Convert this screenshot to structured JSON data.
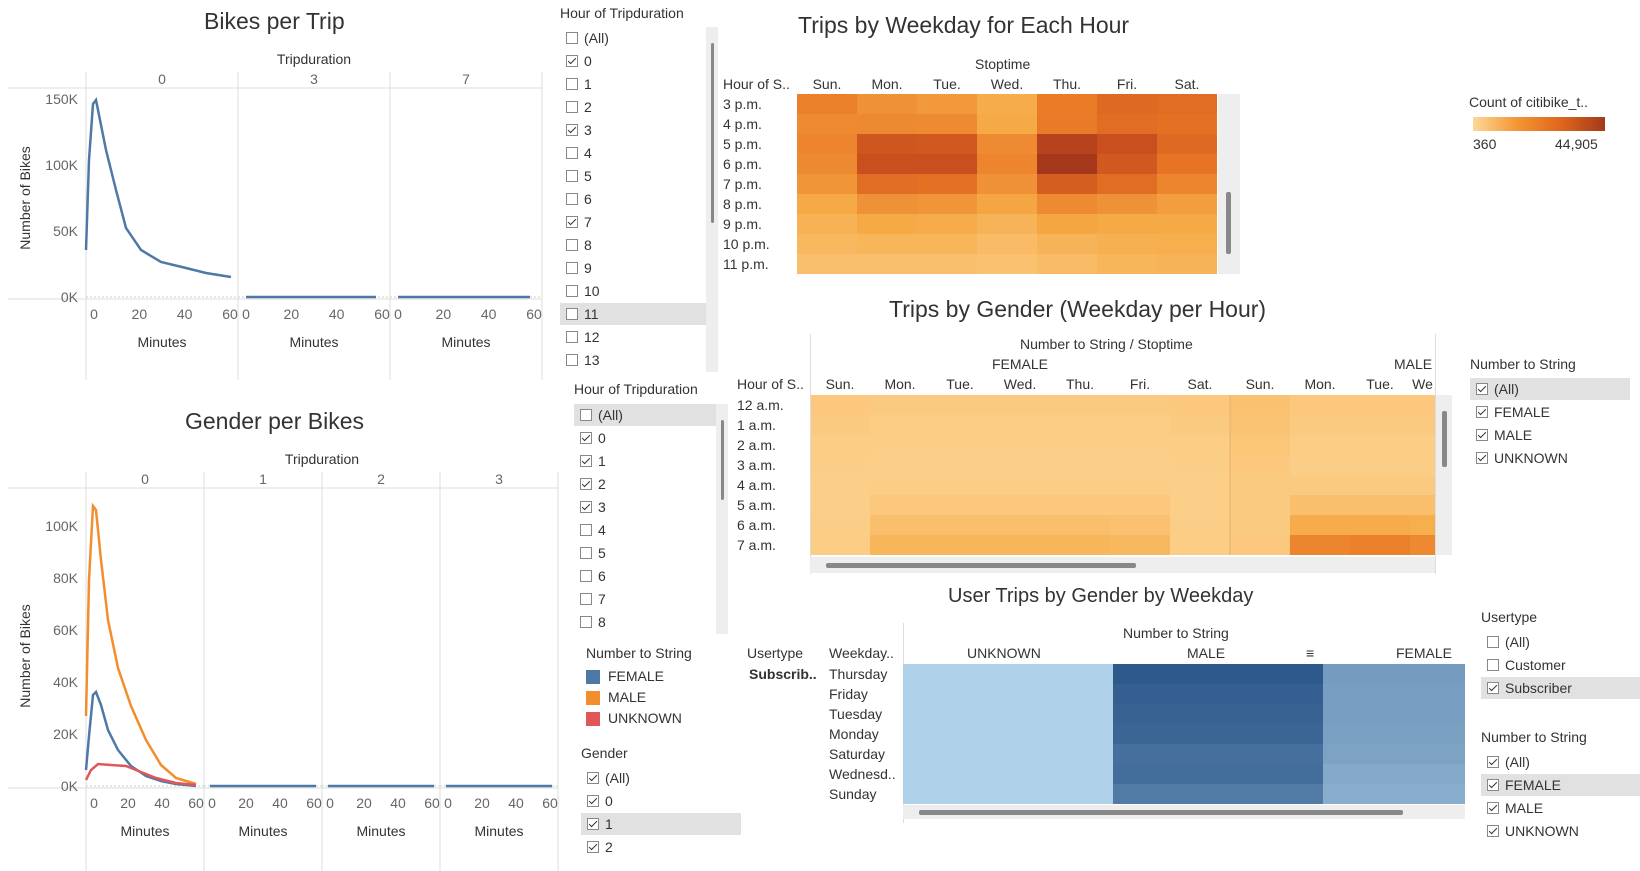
{
  "bikes_per_trip": {
    "title": "Bikes per Trip",
    "facet_header": "Tripduration",
    "facets": [
      "0",
      "3",
      "7"
    ],
    "y_label": "Number of Bikes",
    "y_ticks": [
      "150K",
      "100K",
      "50K",
      "0K"
    ],
    "x_ticks": [
      "0",
      "20",
      "40",
      "60"
    ],
    "x_label": "Minutes"
  },
  "gender_per_bikes": {
    "title": "Gender per Bikes",
    "facet_header": "Tripduration",
    "facets": [
      "0",
      "1",
      "2",
      "3"
    ],
    "y_label": "Number of Bikes",
    "y_ticks": [
      "100K",
      "80K",
      "60K",
      "40K",
      "20K",
      "0K"
    ],
    "x_ticks": [
      "0",
      "20",
      "40",
      "60"
    ],
    "x_label": "Minutes"
  },
  "filter_hour_1": {
    "title": "Hour of Tripduration",
    "items": [
      {
        "label": "(All)",
        "checked": false
      },
      {
        "label": "0",
        "checked": true
      },
      {
        "label": "1",
        "checked": false
      },
      {
        "label": "2",
        "checked": false
      },
      {
        "label": "3",
        "checked": true
      },
      {
        "label": "4",
        "checked": false
      },
      {
        "label": "5",
        "checked": false
      },
      {
        "label": "6",
        "checked": false
      },
      {
        "label": "7",
        "checked": true
      },
      {
        "label": "8",
        "checked": false
      },
      {
        "label": "9",
        "checked": false
      },
      {
        "label": "10",
        "checked": false
      },
      {
        "label": "11",
        "checked": false,
        "highlight": true
      },
      {
        "label": "12",
        "checked": false
      },
      {
        "label": "13",
        "checked": false
      }
    ]
  },
  "filter_hour_2": {
    "title": "Hour of Tripduration",
    "items": [
      {
        "label": "(All)",
        "checked": false,
        "highlight": true
      },
      {
        "label": "0",
        "checked": true
      },
      {
        "label": "1",
        "checked": true
      },
      {
        "label": "2",
        "checked": true
      },
      {
        "label": "3",
        "checked": true
      },
      {
        "label": "4",
        "checked": false
      },
      {
        "label": "5",
        "checked": false
      },
      {
        "label": "6",
        "checked": false
      },
      {
        "label": "7",
        "checked": false
      },
      {
        "label": "8",
        "checked": false
      }
    ]
  },
  "legend_number_to_string": {
    "title": "Number to String",
    "items": [
      {
        "label": "FEMALE",
        "color": "#4e79a7"
      },
      {
        "label": "MALE",
        "color": "#f28e2b"
      },
      {
        "label": "UNKNOWN",
        "color": "#e15759"
      }
    ]
  },
  "filter_gender": {
    "title": "Gender",
    "items": [
      {
        "label": "(All)",
        "checked": true
      },
      {
        "label": "0",
        "checked": true
      },
      {
        "label": "1",
        "checked": true,
        "highlight": true
      },
      {
        "label": "2",
        "checked": true
      }
    ]
  },
  "trips_weekday_hour": {
    "title": "Trips by Weekday for Each Hour",
    "column_header": "Stoptime",
    "row_header": "Hour of S..",
    "days": [
      "Sun.",
      "Mon.",
      "Tue.",
      "Wed.",
      "Thu.",
      "Fri.",
      "Sat."
    ],
    "hours": [
      "3 p.m.",
      "4 p.m.",
      "5 p.m.",
      "6 p.m.",
      "7 p.m.",
      "8 p.m.",
      "9 p.m.",
      "10 p.m.",
      "11 p.m."
    ],
    "values": [
      [
        0.6,
        0.52,
        0.48,
        0.38,
        0.62,
        0.72,
        0.7
      ],
      [
        0.55,
        0.56,
        0.55,
        0.4,
        0.63,
        0.7,
        0.68
      ],
      [
        0.58,
        0.82,
        0.8,
        0.55,
        0.92,
        0.85,
        0.72
      ],
      [
        0.56,
        0.85,
        0.85,
        0.58,
        0.98,
        0.8,
        0.66
      ],
      [
        0.5,
        0.7,
        0.68,
        0.52,
        0.78,
        0.7,
        0.58
      ],
      [
        0.4,
        0.52,
        0.5,
        0.42,
        0.55,
        0.52,
        0.46
      ],
      [
        0.33,
        0.4,
        0.38,
        0.32,
        0.42,
        0.4,
        0.4
      ],
      [
        0.28,
        0.3,
        0.3,
        0.25,
        0.32,
        0.35,
        0.36
      ],
      [
        0.22,
        0.22,
        0.22,
        0.2,
        0.25,
        0.3,
        0.32
      ]
    ]
  },
  "color_legend": {
    "title": "Count of citibike_t..",
    "min": "360",
    "max": "44,905"
  },
  "trips_by_gender": {
    "title": "Trips by Gender (Weekday per Hour)",
    "column_header": "Number to String / Stoptime",
    "row_header": "Hour of S..",
    "groups": [
      "FEMALE",
      "MALE"
    ],
    "days_female": [
      "Sun.",
      "Mon.",
      "Tue.",
      "Wed.",
      "Thu.",
      "Fri.",
      "Sat."
    ],
    "days_male": [
      "Sun.",
      "Mon.",
      "Tue.",
      "We"
    ],
    "hours": [
      "12 a.m.",
      "1 a.m.",
      "2 a.m.",
      "3 a.m.",
      "4 a.m.",
      "5 a.m.",
      "6 a.m.",
      "7 a.m."
    ],
    "values": [
      [
        0.14,
        0.12,
        0.12,
        0.12,
        0.12,
        0.12,
        0.14,
        0.2,
        0.14,
        0.14,
        0.14
      ],
      [
        0.12,
        0.1,
        0.1,
        0.1,
        0.1,
        0.1,
        0.12,
        0.18,
        0.12,
        0.12,
        0.12
      ],
      [
        0.1,
        0.09,
        0.09,
        0.09,
        0.09,
        0.09,
        0.1,
        0.16,
        0.1,
        0.1,
        0.1
      ],
      [
        0.09,
        0.08,
        0.08,
        0.08,
        0.08,
        0.08,
        0.09,
        0.14,
        0.09,
        0.09,
        0.09
      ],
      [
        0.08,
        0.09,
        0.09,
        0.09,
        0.09,
        0.09,
        0.08,
        0.12,
        0.12,
        0.12,
        0.12
      ],
      [
        0.08,
        0.14,
        0.14,
        0.14,
        0.14,
        0.14,
        0.08,
        0.12,
        0.22,
        0.22,
        0.22
      ],
      [
        0.09,
        0.22,
        0.22,
        0.22,
        0.22,
        0.2,
        0.09,
        0.12,
        0.38,
        0.38,
        0.36
      ],
      [
        0.1,
        0.3,
        0.3,
        0.3,
        0.3,
        0.28,
        0.1,
        0.14,
        0.58,
        0.6,
        0.56
      ]
    ]
  },
  "filter_number_to_string_1": {
    "title": "Number to String",
    "items": [
      {
        "label": "(All)",
        "checked": true,
        "highlight": true
      },
      {
        "label": "FEMALE",
        "checked": true
      },
      {
        "label": "MALE",
        "checked": true
      },
      {
        "label": "UNKNOWN",
        "checked": true
      }
    ]
  },
  "user_trips": {
    "title": "User Trips by Gender by Weekday",
    "column_header": "Number to String",
    "row_header_1": "Usertype",
    "row_header_2": "Weekday..",
    "usertype": "Subscrib..",
    "columns": [
      "UNKNOWN",
      "MALE",
      "FEMALE"
    ],
    "days": [
      "Thursday",
      "Friday",
      "Tuesday",
      "Monday",
      "Saturday",
      "Wednesd..",
      "Sunday"
    ],
    "values": [
      [
        0.05,
        0.95,
        0.45
      ],
      [
        0.05,
        0.9,
        0.44
      ],
      [
        0.05,
        0.88,
        0.43
      ],
      [
        0.05,
        0.86,
        0.42
      ],
      [
        0.05,
        0.78,
        0.4
      ],
      [
        0.05,
        0.8,
        0.35
      ],
      [
        0.05,
        0.7,
        0.32
      ]
    ]
  },
  "filter_usertype": {
    "title": "Usertype",
    "items": [
      {
        "label": "(All)",
        "checked": false
      },
      {
        "label": "Customer",
        "checked": false
      },
      {
        "label": "Subscriber",
        "checked": true,
        "highlight": true
      }
    ]
  },
  "filter_number_to_string_2": {
    "title": "Number to String",
    "items": [
      {
        "label": "(All)",
        "checked": true
      },
      {
        "label": "FEMALE",
        "checked": true,
        "highlight": true
      },
      {
        "label": "MALE",
        "checked": true
      },
      {
        "label": "UNKNOWN",
        "checked": true
      }
    ]
  }
}
